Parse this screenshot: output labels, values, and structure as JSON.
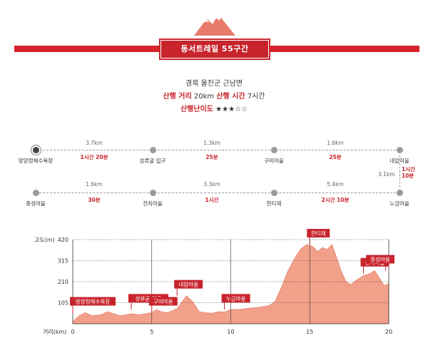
{
  "title": "동서트레일 55구간",
  "location": "경북 울진군 근남면",
  "distance_label": "산행 거리",
  "distance_value": "20km",
  "time_label": "산행 시간",
  "time_value": "7시간",
  "difficulty_label": "산행난이도",
  "difficulty_stars": "★★★☆☆",
  "route_row1": {
    "nodes": [
      "망양정해수욕장",
      "성류굴 입구",
      "구미마을",
      "내압마을"
    ],
    "distances": [
      "3.7km",
      "1.3km",
      "1.6km"
    ],
    "times": [
      "1시간 20분",
      "25분",
      "25분"
    ]
  },
  "connector": {
    "distance": "3.1km",
    "time": "1시간\n10분"
  },
  "route_row2": {
    "nodes": [
      "중성마을",
      "전치마을",
      "한티재",
      "누금마을"
    ],
    "distances": [
      "1.6km",
      "3.3km",
      "5.4km"
    ],
    "times": [
      "30분",
      "1시간",
      "2시간 10분"
    ]
  },
  "chart_data": {
    "type": "area",
    "ylabel": "고도(m)",
    "xlabel": "거리(km)",
    "yticks": [
      105,
      210,
      315,
      420
    ],
    "xticks": [
      0,
      5,
      10,
      15,
      20
    ],
    "xlim": [
      0,
      20
    ],
    "ylim": [
      0,
      420
    ],
    "fill_color": "#f2a08a",
    "x": [
      0,
      0.4,
      0.8,
      1.2,
      1.8,
      2.2,
      2.6,
      3.0,
      3.4,
      3.7,
      4.2,
      4.6,
      5.0,
      5.3,
      5.6,
      6.0,
      6.6,
      7.2,
      7.6,
      8.0,
      8.4,
      8.8,
      9.2,
      9.6,
      10.0,
      10.6,
      11.2,
      11.8,
      12.4,
      12.8,
      13.2,
      13.6,
      14.0,
      14.4,
      14.8,
      15.2,
      15.5,
      15.8,
      16.1,
      16.4,
      16.7,
      17.0,
      17.3,
      17.6,
      18.0,
      18.4,
      18.8,
      19.1,
      19.4,
      19.7,
      20.0
    ],
    "y": [
      10,
      40,
      55,
      40,
      45,
      60,
      50,
      40,
      45,
      50,
      45,
      50,
      55,
      70,
      60,
      55,
      75,
      140,
      110,
      60,
      55,
      52,
      60,
      58,
      70,
      72,
      78,
      82,
      90,
      110,
      180,
      260,
      320,
      370,
      395,
      385,
      360,
      380,
      370,
      395,
      330,
      260,
      210,
      195,
      220,
      240,
      250,
      265,
      230,
      190,
      200
    ],
    "labels": [
      {
        "text": "망양정해수욕장",
        "x": 0.0,
        "y": 55
      },
      {
        "text": "성류굴 입구",
        "x": 3.7,
        "y": 70
      },
      {
        "text": "구미마을",
        "x": 5.0,
        "y": 55
      },
      {
        "text": "내압마을",
        "x": 6.6,
        "y": 140
      },
      {
        "text": "누금마을",
        "x": 9.6,
        "y": 70
      },
      {
        "text": "한티재",
        "x": 15.0,
        "y": 395
      },
      {
        "text": "전치마을",
        "x": 18.4,
        "y": 250
      },
      {
        "text": "중성마을",
        "x": 19.8,
        "y": 265
      }
    ]
  }
}
